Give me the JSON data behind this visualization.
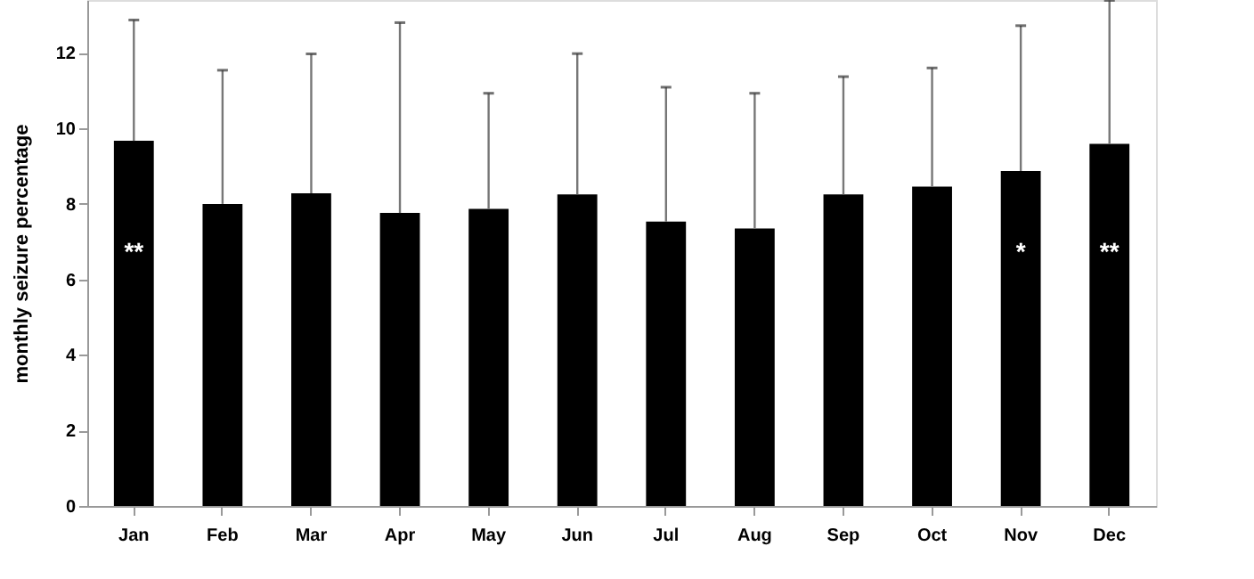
{
  "chart_data": {
    "type": "bar",
    "ylabel": "monthly seizure percentage",
    "categories": [
      "Jan",
      "Feb",
      "Mar",
      "Apr",
      "May",
      "Jun",
      "Jul",
      "Aug",
      "Sep",
      "Oct",
      "Nov",
      "Dec"
    ],
    "values": [
      9.67,
      8.0,
      8.28,
      7.76,
      7.87,
      8.25,
      7.53,
      7.35,
      8.25,
      8.46,
      8.87,
      9.59
    ],
    "errors": [
      3.2,
      3.54,
      3.69,
      5.04,
      3.06,
      3.73,
      3.56,
      3.58,
      3.12,
      3.14,
      3.85,
      3.8
    ],
    "color": "#000000",
    "ylim": [
      0,
      13.4
    ],
    "yticks": [
      0,
      2,
      4,
      6,
      8,
      10,
      12
    ],
    "grid": false,
    "value_labels": [
      "**",
      null,
      null,
      null,
      null,
      null,
      null,
      null,
      null,
      null,
      "*",
      "**"
    ]
  }
}
